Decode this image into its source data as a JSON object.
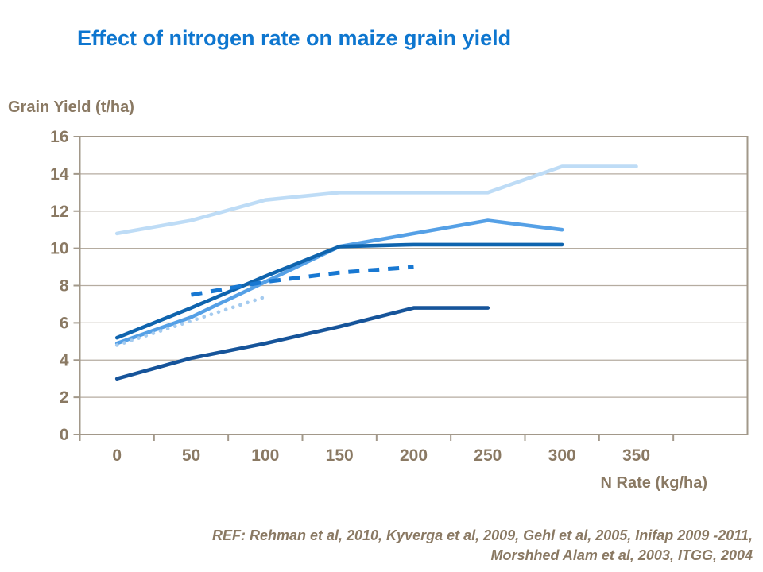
{
  "title": "Effect of nitrogen rate on maize grain yield",
  "footer": {
    "line1": "REF: Rehman et al, 2010, Kyverga et al, 2009, Gehl et al, 2005, Inifap 2009 -2011,",
    "line2": "Morshhed Alam et al, 2003, ITGG, 2004"
  },
  "colors": {
    "title_blue": "#0E76CF",
    "axis_text_brown": "#8A7963",
    "axis_line": "#A2988A",
    "gridline": "#B5ACA0",
    "background": "#FFFFFF"
  },
  "chart_data": {
    "type": "line",
    "title": "Effect of nitrogen rate on maize grain yield",
    "xlabel": "N Rate (kg/ha)",
    "ylabel": "Grain Yield (t/ha)",
    "xlim": [
      0,
      350
    ],
    "ylim": [
      0,
      16
    ],
    "x_ticks": [
      0,
      50,
      100,
      150,
      200,
      250,
      300,
      350
    ],
    "y_ticks": [
      0,
      2,
      4,
      6,
      8,
      10,
      12,
      14,
      16
    ],
    "grid": "horizontal",
    "legend": "none",
    "series": [
      {
        "name": "pale-blue-study",
        "style": "solid",
        "color": "#BEDCF6",
        "x": [
          0,
          50,
          100,
          150,
          200,
          250,
          300,
          350
        ],
        "y": [
          10.8,
          11.5,
          12.6,
          13.0,
          13.0,
          13.0,
          14.4,
          14.4
        ]
      },
      {
        "name": "sky-blue-study",
        "style": "solid",
        "color": "#55A0E6",
        "x": [
          0,
          50,
          100,
          150,
          200,
          250,
          300
        ],
        "y": [
          4.9,
          6.3,
          8.2,
          10.1,
          10.8,
          11.5,
          11.0
        ]
      },
      {
        "name": "dark-blue-study",
        "style": "solid",
        "color": "#0F64AE",
        "x": [
          0,
          50,
          100,
          150,
          200,
          250,
          300
        ],
        "y": [
          5.2,
          6.8,
          8.5,
          10.1,
          10.2,
          10.2,
          10.2
        ]
      },
      {
        "name": "navy-study",
        "style": "solid",
        "color": "#16549A",
        "x": [
          0,
          50,
          100,
          150,
          200,
          250
        ],
        "y": [
          3.0,
          4.1,
          4.9,
          5.8,
          6.8,
          6.8
        ]
      },
      {
        "name": "dashed-blue-study",
        "style": "dashed",
        "color": "#1878D2",
        "x": [
          50,
          100,
          150,
          200
        ],
        "y": [
          7.5,
          8.2,
          8.7,
          9.0
        ]
      },
      {
        "name": "dotted-light-blue-study",
        "style": "dotted",
        "color": "#A5CBEF",
        "x": [
          0,
          50,
          100
        ],
        "y": [
          4.8,
          6.1,
          7.4
        ]
      }
    ]
  }
}
